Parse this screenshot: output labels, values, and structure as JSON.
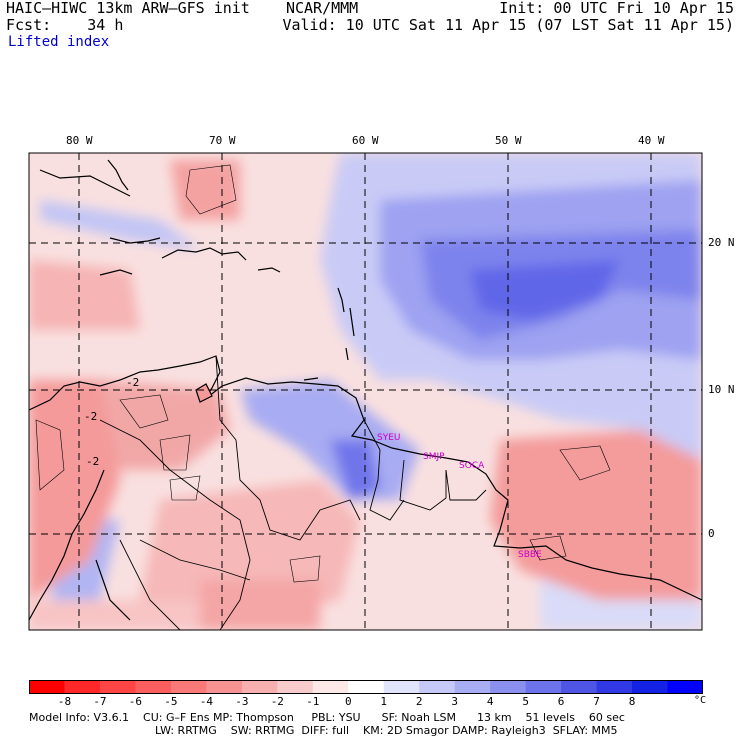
{
  "header": {
    "title": "HAIC–HIWC 13km ARW–GFS init    NCAR/MMM",
    "forecast": "Fcst:    34 h",
    "field": "Lifted index",
    "init": "Init: 00 UTC Fri 10 Apr 15",
    "valid": "Valid: 10 UTC Sat 11 Apr 15 (07 LST Sat 11 Apr 15)"
  },
  "map": {
    "lon_labels": [
      "80 W",
      "70 W",
      "60 W",
      "50 W",
      "40 W"
    ],
    "lat_labels": [
      "20 N",
      "10 N",
      "0"
    ],
    "contour_labels": [
      "-2",
      "-2",
      "-2"
    ],
    "stations": [
      "SYEU",
      "SMJP",
      "SOCA",
      "SBBE"
    ]
  },
  "colorbar": {
    "ticks": [
      "-8",
      "-7",
      "-6",
      "-5",
      "-4",
      "-3",
      "-2",
      "-1",
      "0",
      "1",
      "2",
      "3",
      "4",
      "5",
      "6",
      "7",
      "8"
    ],
    "unit": "°C",
    "colors": [
      "#ff0000",
      "#ff2828",
      "#fd4545",
      "#fb5e5e",
      "#f97878",
      "#f79292",
      "#f6b0b0",
      "#f8cccc",
      "#fde8e8",
      "#ffffff",
      "#e2e4fb",
      "#c6c9f7",
      "#a9adf3",
      "#8b90ee",
      "#6d73ea",
      "#4f56e6",
      "#3039e3",
      "#1322e3",
      "#0000ff"
    ]
  },
  "footer": {
    "line1": "Model Info: V3.6.1    CU: G–F Ens MP: Thompson     PBL: YSU      SF: Noah LSM      13 km    51 levels    60 sec",
    "line2": "LW: RRTMG    SW: RRTMG  DIFF: full    KM: 2D Smagor DAMP: Rayleigh3  SFLAY: MM5"
  }
}
